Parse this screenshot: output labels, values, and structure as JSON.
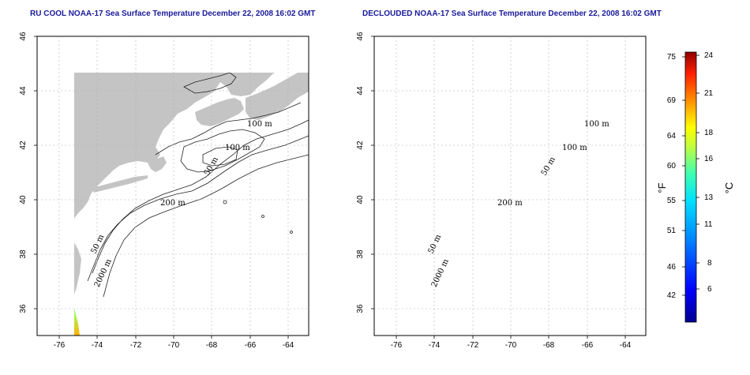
{
  "panels": [
    {
      "title": "RU COOL NOAA-17 Sea Surface Temperature December 22, 2008 16:02 GMT"
    },
    {
      "title": "DECLOUDED NOAA-17 Sea Surface Temperature December 22, 2008 16:02 GMT"
    }
  ],
  "axes": {
    "x_ticks": [
      "-76",
      "-74",
      "-72",
      "-70",
      "-68",
      "-66",
      "-64"
    ],
    "y_ticks": [
      "36",
      "38",
      "40",
      "42",
      "44",
      "46"
    ],
    "xlim": [
      -77.2,
      -63.0
    ],
    "ylim": [
      35.0,
      46.0
    ]
  },
  "contour_labels": [
    "100 m",
    "100 m",
    "50 m",
    "200 m",
    "50 m",
    "2000 m"
  ],
  "colorbar": {
    "unit_left": "°F",
    "unit_right": "°C",
    "fahrenheit_ticks": [
      "75",
      "69",
      "64",
      "60",
      "55",
      "51",
      "46",
      "42"
    ],
    "celsius_ticks": [
      "24",
      "21",
      "18",
      "16",
      "13",
      "11",
      "8",
      "6"
    ]
  },
  "colors": {
    "land": "#c4c4c4",
    "title": "#1a1a9a",
    "grid": "#b0b0b0"
  }
}
